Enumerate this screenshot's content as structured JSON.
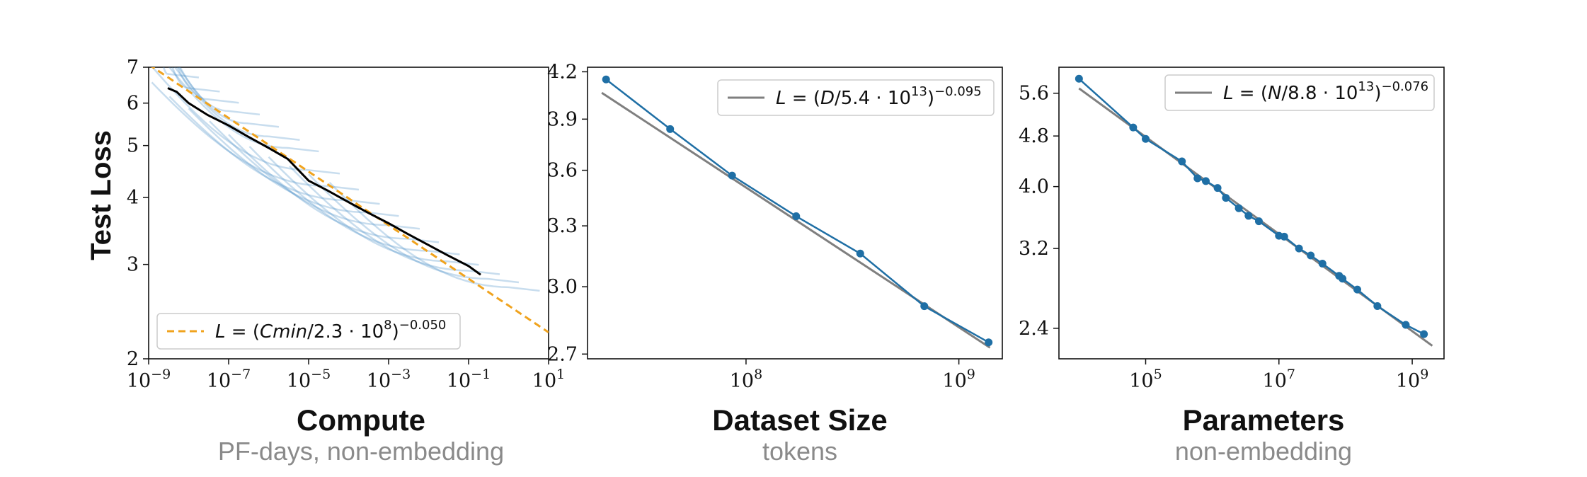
{
  "chart_data": [
    {
      "type": "line",
      "ylabel": "Test Loss",
      "xlabel": "Compute",
      "xsublabel": "PF-days, non-embedding",
      "xscale": "log",
      "yscale": "log",
      "xlim": [
        1e-09,
        10
      ],
      "ylim": [
        2,
        7
      ],
      "xticks": [
        1e-09,
        1e-07,
        1e-05,
        0.001,
        0.1,
        10
      ],
      "xtick_labels": [
        [
          "10",
          "−9"
        ],
        [
          "10",
          "−7"
        ],
        [
          "10",
          "−5"
        ],
        [
          "10",
          "−3"
        ],
        [
          "10",
          "−1"
        ],
        [
          "10",
          "1"
        ]
      ],
      "yticks": [
        2,
        3,
        4,
        5,
        6,
        7
      ],
      "ytick_labels": [
        "2",
        "3",
        "4",
        "5",
        "6",
        "7"
      ],
      "legend": {
        "position": "lower-left",
        "entries": [
          {
            "text": "L = (Cmin/2.3 · 108)−0.050",
            "line_style": "dashed",
            "color": "#f0a31e"
          }
        ]
      },
      "fit_line": {
        "color": "#f0a31e",
        "style": "dashed",
        "C0": 230000000.0,
        "alpha": 0.05
      },
      "frontier": {
        "color": "#000000",
        "x": [
          3e-09,
          5e-09,
          1e-08,
          3e-08,
          1e-07,
          3e-07,
          1e-06,
          3e-06,
          1e-05,
          3e-05,
          0.0001,
          0.0003,
          0.001,
          0.003,
          0.01,
          0.03,
          0.1,
          0.2
        ],
        "y": [
          6.4,
          6.3,
          6.0,
          5.7,
          5.45,
          5.2,
          4.95,
          4.72,
          4.3,
          4.12,
          3.92,
          3.75,
          3.58,
          3.42,
          3.26,
          3.12,
          2.98,
          2.87
        ]
      },
      "runs": {
        "color": "#4a90c8",
        "opacity": 0.3,
        "end_x": [
          3e-09,
          1e-08,
          3e-08,
          1e-07,
          3e-07,
          1e-06,
          3e-06,
          1e-05,
          3e-05,
          0.0001,
          0.0003,
          0.001,
          0.003,
          0.01,
          0.03,
          0.1,
          0.3,
          1
        ],
        "end_y": [
          6.8,
          6.4,
          6.1,
          5.8,
          5.5,
          5.2,
          4.95,
          4.5,
          4.2,
          3.95,
          3.75,
          3.55,
          3.35,
          3.18,
          3.04,
          2.92,
          2.82,
          2.72
        ]
      }
    },
    {
      "type": "line",
      "xlabel": "Dataset Size",
      "xsublabel": "tokens",
      "xscale": "log",
      "yscale": "log",
      "xlim": [
        18000000.0,
        1600000000.0
      ],
      "ylim": [
        2.68,
        4.23
      ],
      "xticks": [
        100000000.0,
        1000000000.0
      ],
      "xtick_labels": [
        [
          "10",
          "8"
        ],
        [
          "10",
          "9"
        ]
      ],
      "yticks": [
        2.7,
        3.0,
        3.3,
        3.6,
        3.9,
        4.2
      ],
      "ytick_labels": [
        "2.7",
        "3.0",
        "3.3",
        "3.6",
        "3.9",
        "4.2"
      ],
      "legend": {
        "position": "top-right",
        "entries": [
          {
            "text": "L = (D/5.4 · 1013)−0.095",
            "line_style": "solid",
            "color": "#7f7f7f"
          }
        ]
      },
      "fit_line": {
        "color": "#7f7f7f",
        "D0": 54000000000000.0,
        "alpha": 0.095,
        "x_range": [
          21000000.0,
          1400000000.0
        ]
      },
      "series": [
        {
          "name": "",
          "color": "#1f6fa5",
          "x": [
            22000000.0,
            44000000.0,
            86000000.0,
            172000000.0,
            344000000.0,
            688000000.0,
            1380000000.0
          ],
          "y": [
            4.15,
            3.84,
            3.57,
            3.35,
            3.16,
            2.91,
            2.75
          ]
        }
      ]
    },
    {
      "type": "line",
      "xlabel": "Parameters",
      "xsublabel": "non-embedding",
      "xscale": "log",
      "yscale": "log",
      "xlim": [
        5000.0,
        3000000000.0
      ],
      "ylim": [
        2.15,
        6.15
      ],
      "xticks": [
        100000.0,
        10000000.0,
        1000000000.0
      ],
      "xtick_labels": [
        [
          "10",
          "5"
        ],
        [
          "10",
          "7"
        ],
        [
          "10",
          "9"
        ]
      ],
      "yticks": [
        2.4,
        3.2,
        4.0,
        4.8,
        5.6
      ],
      "ytick_labels": [
        "2.4",
        "3.2",
        "4.0",
        "4.8",
        "5.6"
      ],
      "legend": {
        "position": "top-right",
        "entries": [
          {
            "text": "L = (N/8.8 · 1013)−0.076",
            "line_style": "solid",
            "color": "#7f7f7f"
          }
        ]
      },
      "fit_line": {
        "color": "#7f7f7f",
        "N0": 88000000000000.0,
        "alpha": 0.076,
        "x_range": [
          10000.0,
          2000000000.0
        ]
      },
      "series": [
        {
          "name": "",
          "color": "#1f6fa5",
          "x": [
            10000.0,
            65000.0,
            100000.0,
            350000.0,
            600000.0,
            800000.0,
            1200000.0,
            1600000.0,
            2500000.0,
            3500000.0,
            5000000.0,
            10000000.0,
            12000000.0,
            20000000.0,
            30000000.0,
            45000000.0,
            80000000.0,
            90000000.0,
            150000000.0,
            300000000.0,
            800000000.0,
            1500000000.0
          ],
          "y": [
            5.9,
            4.95,
            4.75,
            4.38,
            4.12,
            4.08,
            3.98,
            3.84,
            3.7,
            3.6,
            3.53,
            3.35,
            3.34,
            3.2,
            3.12,
            3.03,
            2.9,
            2.87,
            2.76,
            2.6,
            2.43,
            2.35
          ]
        }
      ]
    }
  ]
}
